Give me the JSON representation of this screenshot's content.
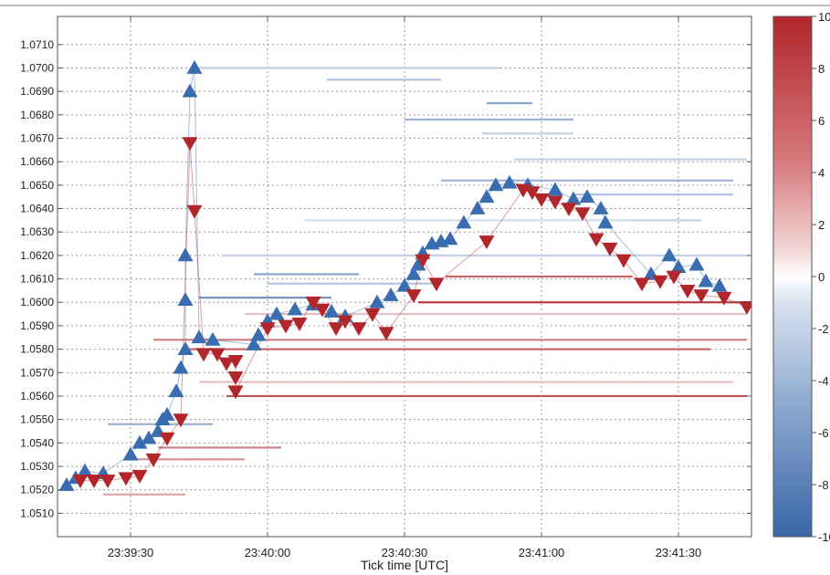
{
  "chart_data": {
    "type": "scatter",
    "title": "",
    "xlabel": "Tick time [UTC]",
    "ylabel": "",
    "x_ticks": [
      "23:39:30",
      "23:40:00",
      "23:40:30",
      "23:41:00",
      "23:41:30"
    ],
    "xlim": [
      "23:39:14",
      "23:41:46"
    ],
    "ylim": [
      1.05,
      1.0722
    ],
    "y_ticks": [
      "1.0510",
      "1.0520",
      "1.0530",
      "1.0540",
      "1.0550",
      "1.0560",
      "1.0570",
      "1.0580",
      "1.0590",
      "1.0600",
      "1.0610",
      "1.0620",
      "1.0630",
      "1.0640",
      "1.0650",
      "1.0660",
      "1.0670",
      "1.0680",
      "1.0690",
      "1.0700",
      "1.0710"
    ],
    "grid": true,
    "colorbar": {
      "ticks": [
        "10",
        "8",
        "6",
        "4",
        "2",
        "0",
        "-2",
        "-4",
        "-6",
        "-8",
        "-10"
      ],
      "range": [
        -10,
        10
      ],
      "high_color": "#b0262b",
      "mid_color": "#ffffff",
      "low_color": "#3a66a8"
    },
    "series": [
      {
        "marker": "triangle-up",
        "color": "#3a6cb0",
        "points": [
          [
            "23:39:16",
            1.0522
          ],
          [
            "23:39:18",
            1.0525
          ],
          [
            "23:39:20",
            1.0528
          ],
          [
            "23:39:24",
            1.0527
          ],
          [
            "23:39:30",
            1.0535
          ],
          [
            "23:39:32",
            1.054
          ],
          [
            "23:39:34",
            1.0542
          ],
          [
            "23:39:36",
            1.0545
          ],
          [
            "23:39:37",
            1.055
          ],
          [
            "23:39:38",
            1.0552
          ],
          [
            "23:39:40",
            1.0562
          ],
          [
            "23:39:41",
            1.0572
          ],
          [
            "23:39:42",
            1.058
          ],
          [
            "23:39:42",
            1.0601
          ],
          [
            "23:39:42",
            1.062
          ],
          [
            "23:39:43",
            1.069
          ],
          [
            "23:39:44",
            1.07
          ],
          [
            "23:39:45",
            1.0585
          ],
          [
            "23:39:48",
            1.0584
          ],
          [
            "23:39:57",
            1.0582
          ],
          [
            "23:39:58",
            1.0586
          ],
          [
            "23:40:00",
            1.0592
          ],
          [
            "23:40:02",
            1.0595
          ],
          [
            "23:40:06",
            1.0597
          ],
          [
            "23:40:10",
            1.0599
          ],
          [
            "23:40:14",
            1.0596
          ],
          [
            "23:40:17",
            1.0594
          ],
          [
            "23:40:24",
            1.06
          ],
          [
            "23:40:27",
            1.0603
          ],
          [
            "23:40:30",
            1.0607
          ],
          [
            "23:40:32",
            1.0612
          ],
          [
            "23:40:33",
            1.0616
          ],
          [
            "23:40:34",
            1.0621
          ],
          [
            "23:40:36",
            1.0625
          ],
          [
            "23:40:38",
            1.0626
          ],
          [
            "23:40:40",
            1.0627
          ],
          [
            "23:40:43",
            1.0634
          ],
          [
            "23:40:46",
            1.064
          ],
          [
            "23:40:48",
            1.0645
          ],
          [
            "23:40:50",
            1.065
          ],
          [
            "23:40:53",
            1.0651
          ],
          [
            "23:40:57",
            1.065
          ],
          [
            "23:41:03",
            1.0648
          ],
          [
            "23:41:07",
            1.0644
          ],
          [
            "23:41:10",
            1.0645
          ],
          [
            "23:41:13",
            1.064
          ],
          [
            "23:41:14",
            1.0634
          ],
          [
            "23:41:24",
            1.0612
          ],
          [
            "23:41:28",
            1.062
          ],
          [
            "23:41:30",
            1.0615
          ],
          [
            "23:41:34",
            1.0616
          ],
          [
            "23:41:36",
            1.0609
          ],
          [
            "23:41:39",
            1.0607
          ]
        ]
      },
      {
        "marker": "triangle-down",
        "color": "#b0262b",
        "points": [
          [
            "23:39:19",
            1.0524
          ],
          [
            "23:39:22",
            1.0524
          ],
          [
            "23:39:25",
            1.0524
          ],
          [
            "23:39:29",
            1.0525
          ],
          [
            "23:39:32",
            1.0526
          ],
          [
            "23:39:35",
            1.0533
          ],
          [
            "23:39:38",
            1.0542
          ],
          [
            "23:39:41",
            1.055
          ],
          [
            "23:39:43",
            1.0668
          ],
          [
            "23:39:44",
            1.0639
          ],
          [
            "23:39:46",
            1.0578
          ],
          [
            "23:39:49",
            1.0578
          ],
          [
            "23:39:51",
            1.0574
          ],
          [
            "23:39:53",
            1.0575
          ],
          [
            "23:39:53",
            1.0568
          ],
          [
            "23:39:53",
            1.0562
          ],
          [
            "23:40:00",
            1.0589
          ],
          [
            "23:40:04",
            1.059
          ],
          [
            "23:40:07",
            1.0591
          ],
          [
            "23:40:10",
            1.06
          ],
          [
            "23:40:12",
            1.0597
          ],
          [
            "23:40:15",
            1.0589
          ],
          [
            "23:40:17",
            1.0592
          ],
          [
            "23:40:20",
            1.0589
          ],
          [
            "23:40:23",
            1.0595
          ],
          [
            "23:40:26",
            1.0587
          ],
          [
            "23:40:32",
            1.0603
          ],
          [
            "23:40:34",
            1.0618
          ],
          [
            "23:40:37",
            1.0608
          ],
          [
            "23:40:48",
            1.0626
          ],
          [
            "23:40:56",
            1.0648
          ],
          [
            "23:40:58",
            1.0647
          ],
          [
            "23:41:00",
            1.0644
          ],
          [
            "23:41:03",
            1.0643
          ],
          [
            "23:41:06",
            1.064
          ],
          [
            "23:41:09",
            1.0638
          ],
          [
            "23:41:12",
            1.0627
          ],
          [
            "23:41:15",
            1.0623
          ],
          [
            "23:41:18",
            1.0618
          ],
          [
            "23:41:22",
            1.0608
          ],
          [
            "23:41:26",
            1.0609
          ],
          [
            "23:41:29",
            1.0611
          ],
          [
            "23:41:32",
            1.0605
          ],
          [
            "23:41:35",
            1.0603
          ],
          [
            "23:41:40",
            1.0602
          ],
          [
            "23:41:45",
            1.0598
          ]
        ]
      }
    ],
    "order_levels": [
      {
        "from": "23:39:45",
        "to": "23:40:51",
        "price": 1.07,
        "value": -3
      },
      {
        "from": "23:40:13",
        "to": "23:40:38",
        "price": 1.0695,
        "value": -4
      },
      {
        "from": "23:40:48",
        "to": "23:40:58",
        "price": 1.0685,
        "value": -6
      },
      {
        "from": "23:40:30",
        "to": "23:41:07",
        "price": 1.0678,
        "value": -5
      },
      {
        "from": "23:40:47",
        "to": "23:41:07",
        "price": 1.0672,
        "value": -3
      },
      {
        "from": "23:40:54",
        "to": "23:41:45",
        "price": 1.0661,
        "value": -3
      },
      {
        "from": "23:40:38",
        "to": "23:41:42",
        "price": 1.0652,
        "value": -5
      },
      {
        "from": "23:41:07",
        "to": "23:41:42",
        "price": 1.0646,
        "value": -4
      },
      {
        "from": "23:40:52",
        "to": "23:41:35",
        "price": 1.0635,
        "value": -3
      },
      {
        "from": "23:40:08",
        "to": "23:41:20",
        "price": 1.0635,
        "value": -2
      },
      {
        "from": "23:39:57",
        "to": "23:40:20",
        "price": 1.0612,
        "value": -6
      },
      {
        "from": "23:40:00",
        "to": "23:40:37",
        "price": 1.0608,
        "value": -4
      },
      {
        "from": "23:39:50",
        "to": "23:41:45",
        "price": 1.062,
        "value": -3
      },
      {
        "from": "23:39:45",
        "to": "23:40:14",
        "price": 1.0602,
        "value": -7
      },
      {
        "from": "23:39:25",
        "to": "23:39:48",
        "price": 1.0548,
        "value": -5
      },
      {
        "from": "23:39:35",
        "to": "23:41:45",
        "price": 1.0584,
        "value": 6
      },
      {
        "from": "23:39:42",
        "to": "23:41:37",
        "price": 1.058,
        "value": 7
      },
      {
        "from": "23:39:45",
        "to": "23:41:42",
        "price": 1.0566,
        "value": 3
      },
      {
        "from": "23:39:51",
        "to": "23:41:45",
        "price": 1.056,
        "value": 8
      },
      {
        "from": "23:39:36",
        "to": "23:40:03",
        "price": 1.0538,
        "value": 6
      },
      {
        "from": "23:39:30",
        "to": "23:39:55",
        "price": 1.0533,
        "value": 5
      },
      {
        "from": "23:39:24",
        "to": "23:39:42",
        "price": 1.0518,
        "value": 4
      },
      {
        "from": "23:40:33",
        "to": "23:41:45",
        "price": 1.06,
        "value": 9
      },
      {
        "from": "23:40:39",
        "to": "23:41:20",
        "price": 1.0611,
        "value": 7
      },
      {
        "from": "23:39:55",
        "to": "23:41:45",
        "price": 1.0595,
        "value": 3
      }
    ]
  }
}
